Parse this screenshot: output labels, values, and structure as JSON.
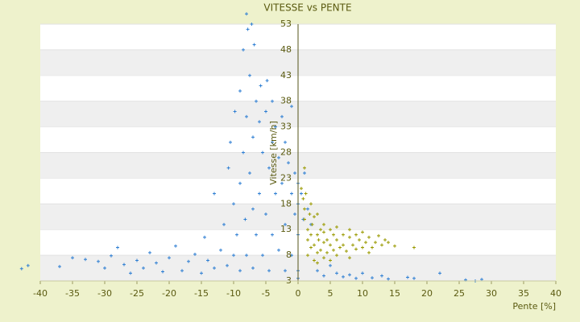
{
  "chart_data": {
    "type": "scatter",
    "title": "VITESSE vs PENTE",
    "x_label": "Pente [%]",
    "y_label": "Vitesse [km/h]",
    "xlim": [
      -40,
      40
    ],
    "xticks": [
      -40,
      -35,
      -30,
      -25,
      -20,
      -15,
      -10,
      -5,
      0,
      5,
      10,
      15,
      20,
      25,
      30,
      35,
      40
    ],
    "ylim": [
      3,
      53
    ],
    "yticks": [
      3,
      8,
      13,
      18,
      23,
      28,
      33,
      38,
      43,
      48,
      53
    ],
    "grid": true,
    "series": [
      {
        "color": "#2f7fd3",
        "x": [
          -42.9,
          -41.9,
          -37,
          -35,
          -33,
          -31,
          -30,
          -29,
          -28,
          -27,
          -26,
          -25,
          -24,
          -23,
          -22,
          -21,
          -20,
          -19,
          -18,
          -17,
          -16,
          -15,
          -14.5,
          -14,
          -13,
          -13,
          -12,
          -11.5,
          -11,
          -10.8,
          -10.5,
          -10,
          -10,
          -9.8,
          -9.5,
          -9,
          -9,
          -9,
          -8.5,
          -8.5,
          -8.2,
          -8,
          -8,
          -8,
          -7.8,
          -7.5,
          -7.5,
          -7.2,
          -7,
          -7,
          -7,
          -6.8,
          -6.5,
          -6.5,
          -6,
          -6,
          -5.8,
          -5.5,
          -5.5,
          -5,
          -5,
          -4.8,
          -4.5,
          -4.5,
          -4,
          -4,
          -4,
          -3.5,
          -3.5,
          -3,
          -3,
          -2.5,
          -2.5,
          -2,
          -2,
          -2,
          -1.5,
          -1,
          -1,
          -1,
          -0.5,
          -0.5,
          0,
          0,
          0,
          0,
          0,
          0.5,
          0.8,
          1,
          1.5,
          2,
          3,
          4,
          5,
          6,
          7,
          8,
          9,
          10,
          11.5,
          13,
          14,
          17,
          18,
          22,
          26,
          27.5,
          28.5
        ],
        "values": [
          5.4,
          6.0,
          5.8,
          7.5,
          7.2,
          6.8,
          5.5,
          7.9,
          9.5,
          6.2,
          4.5,
          7.0,
          5.5,
          8.5,
          6.5,
          4.8,
          7.5,
          9.8,
          5.0,
          6.8,
          8.2,
          4.5,
          11.5,
          7.0,
          5.5,
          20,
          9.0,
          14,
          6.0,
          25,
          30,
          18,
          8,
          36,
          12,
          40,
          22,
          5,
          48,
          28,
          15,
          55,
          35,
          8,
          52,
          43,
          24,
          53,
          31,
          17,
          5.5,
          49,
          38,
          12,
          34,
          20,
          41,
          28,
          8,
          36,
          16,
          42,
          25,
          5,
          38,
          30,
          12,
          33,
          20,
          27,
          9,
          35,
          22,
          30,
          14,
          5,
          26,
          37,
          20,
          8,
          24,
          16,
          22,
          18,
          12,
          5,
          3.5,
          20,
          15,
          24,
          17,
          14,
          5,
          4,
          6,
          4.5,
          3.8,
          4.2,
          3.5,
          4.5,
          3.6,
          4.0,
          3.4,
          3.7,
          3.5,
          4.5,
          3.2,
          3.0,
          3.3
        ]
      },
      {
        "color": "#9a9a00",
        "x": [
          0.5,
          0.8,
          1,
          1,
          1.2,
          1.5,
          1.5,
          1.8,
          2,
          2,
          2.2,
          2.5,
          2.5,
          3,
          3,
          3.2,
          3.5,
          3.5,
          4,
          4,
          4.5,
          4.5,
          5,
          5,
          5.5,
          5.5,
          6,
          6,
          6.5,
          7,
          7,
          7.5,
          8,
          8,
          8.5,
          9,
          9,
          9.5,
          10,
          10,
          10.5,
          11,
          11.5,
          12,
          12.5,
          13,
          13.5,
          14,
          15,
          18,
          1,
          2,
          3,
          4,
          1.5,
          2.5,
          3,
          4,
          5,
          6,
          8,
          11
        ],
        "values": [
          21,
          19,
          17,
          15,
          20,
          13,
          11,
          16,
          12,
          9.5,
          14,
          10,
          15.5,
          12,
          8.5,
          11,
          13,
          9,
          10.5,
          12.5,
          8.5,
          11,
          13,
          10,
          9,
          12,
          11,
          13.5,
          9.5,
          12,
          10,
          8.8,
          11.5,
          13,
          10,
          9.2,
          12,
          11,
          9.5,
          12.5,
          10.5,
          11.5,
          9.5,
          10.5,
          11.8,
          10,
          11,
          10.5,
          9.8,
          9.5,
          25,
          18,
          16,
          14,
          8,
          7,
          6.5,
          7.5,
          7,
          8,
          7.5,
          8.5
        ]
      }
    ]
  }
}
